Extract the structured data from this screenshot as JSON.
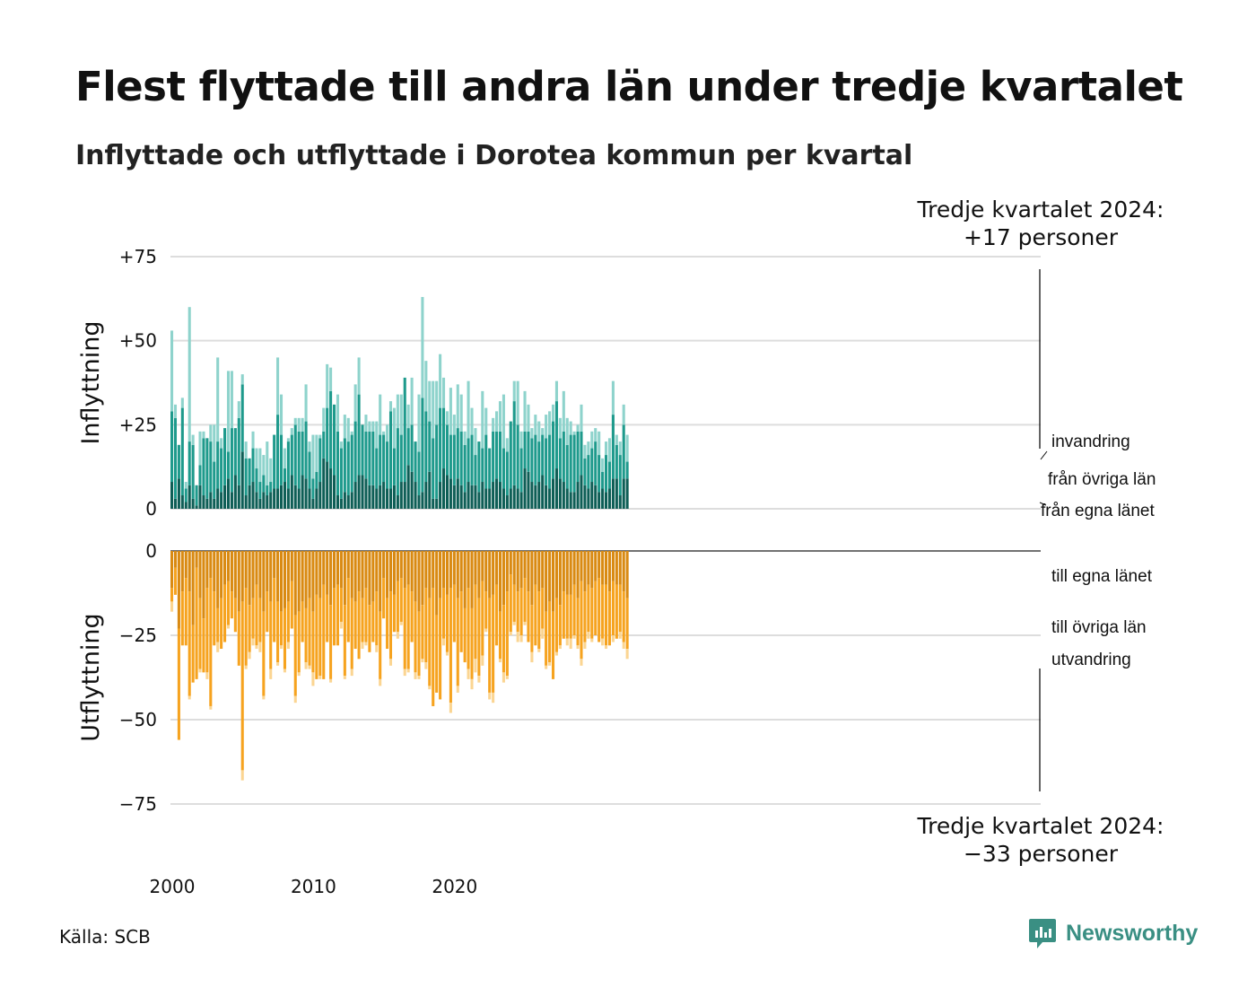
{
  "header": {
    "title": "Flest flyttade till andra län under tredje kvartalet",
    "subtitle": "Inflyttade och utflyttade i Dorotea kommun per kvartal"
  },
  "footer": {
    "source": "Källa: SCB",
    "brand": "Newsworthy"
  },
  "annotations": {
    "top_line1": "Tredje kvartalet 2024:",
    "top_line2": "+17 personer",
    "bottom_line1": "Tredje kvartalet 2024:",
    "bottom_line2": "−33 personer"
  },
  "colors": {
    "in_own": "#0e5e56",
    "in_other": "#1e9a8c",
    "in_abroad": "#8ed3cc",
    "out_own": "#d98a12",
    "out_other": "#f6a31f",
    "out_abroad": "#fbd592",
    "grid": "#dddddd",
    "brand": "#3a8f83"
  },
  "chart_data": {
    "type": "bar",
    "stacked": true,
    "x_start": "2000 Q1",
    "x_ticks": [
      "2000",
      "2010",
      "2020"
    ],
    "panels": [
      {
        "ylabel": "Inflyttning",
        "ylim": [
          0,
          75
        ],
        "yticks": [
          {
            "value": 0,
            "label": "0"
          },
          {
            "value": 25,
            "label": "+25"
          },
          {
            "value": 50,
            "label": "+50"
          },
          {
            "value": 75,
            "label": "+75"
          }
        ],
        "series": [
          {
            "name": "från egna länet",
            "values": [
              8,
              3,
              9,
              4,
              2,
              7,
              3,
              1,
              7,
              4,
              3,
              5,
              3,
              6,
              5,
              7,
              9,
              5,
              10,
              7,
              17,
              4,
              7,
              8,
              5,
              3,
              5,
              4,
              5,
              6,
              6,
              7,
              8,
              6,
              10,
              7,
              6,
              10,
              9,
              6,
              3,
              6,
              8,
              15,
              14,
              12,
              10,
              4,
              3,
              5,
              4,
              5,
              8,
              10,
              10,
              9,
              7,
              7,
              6,
              7,
              8,
              6,
              6,
              7,
              4,
              8,
              8,
              13,
              11,
              8,
              4,
              5,
              8,
              11,
              3,
              3,
              8,
              12,
              10,
              9,
              7,
              9,
              7,
              5,
              8,
              7,
              7,
              5,
              8,
              6,
              6,
              8,
              9,
              8,
              6,
              4,
              6,
              7,
              6,
              5,
              12,
              11,
              8,
              7,
              8,
              10,
              7,
              6,
              9,
              12,
              9,
              8,
              6,
              5,
              5,
              8,
              10,
              7,
              6,
              8,
              7,
              5,
              6,
              5,
              6,
              9,
              9,
              4,
              9,
              9
            ]
          },
          {
            "name": "från övriga län",
            "values": [
              21,
              24,
              10,
              26,
              4,
              13,
              16,
              6,
              6,
              17,
              18,
              15,
              11,
              14,
              13,
              17,
              8,
              19,
              14,
              20,
              20,
              11,
              8,
              10,
              7,
              5,
              5,
              3,
              3,
              16,
              22,
              15,
              4,
              14,
              12,
              18,
              17,
              13,
              17,
              11,
              6,
              5,
              13,
              8,
              16,
              23,
              21,
              19,
              15,
              16,
              16,
              17,
              18,
              24,
              15,
              14,
              16,
              16,
              12,
              15,
              14,
              14,
              23,
              11,
              20,
              14,
              31,
              11,
              14,
              12,
              13,
              28,
              21,
              15,
              18,
              22,
              22,
              18,
              15,
              13,
              15,
              15,
              16,
              14,
              13,
              15,
              9,
              15,
              10,
              16,
              12,
              15,
              14,
              15,
              12,
              13,
              20,
              25,
              19,
              13,
              11,
              12,
              13,
              15,
              12,
              12,
              14,
              16,
              17,
              20,
              12,
              15,
              13,
              17,
              17,
              15,
              13,
              8,
              10,
              10,
              13,
              11,
              5,
              11,
              8,
              19,
              10,
              12,
              16,
              5
            ]
          },
          {
            "name": "invandring",
            "values": [
              24,
              4,
              0,
              3,
              2,
              40,
              3,
              0,
              10,
              2,
              0,
              5,
              11,
              25,
              3,
              0,
              24,
              17,
              0,
              5,
              3,
              5,
              0,
              5,
              6,
              10,
              6,
              13,
              7,
              0,
              17,
              12,
              6,
              1,
              2,
              2,
              4,
              4,
              11,
              3,
              13,
              11,
              1,
              7,
              13,
              7,
              0,
              11,
              2,
              7,
              7,
              1,
              11,
              11,
              0,
              5,
              3,
              3,
              8,
              12,
              1,
              5,
              3,
              12,
              10,
              12,
              0,
              7,
              14,
              0,
              17,
              30,
              15,
              12,
              17,
              13,
              16,
              9,
              4,
              14,
              6,
              13,
              11,
              4,
              17,
              8,
              8,
              0,
              17,
              8,
              0,
              4,
              6,
              9,
              16,
              4,
              0,
              6,
              13,
              5,
              12,
              8,
              3,
              6,
              6,
              2,
              7,
              7,
              5,
              6,
              6,
              12,
              8,
              4,
              1,
              2,
              8,
              4,
              4,
              5,
              4,
              7,
              4,
              4,
              7,
              10,
              3,
              4,
              6,
              8
            ]
          }
        ]
      },
      {
        "ylabel": "Utflyttning",
        "ylim": [
          -75,
          0
        ],
        "yticks": [
          {
            "value": 0,
            "label": "0"
          },
          {
            "value": -25,
            "label": "−25"
          },
          {
            "value": -50,
            "label": "−50"
          },
          {
            "value": -75,
            "label": "−75"
          }
        ],
        "series": [
          {
            "name": "till egna länet",
            "values": [
              -11,
              -5,
              -23,
              -12,
              -8,
              -12,
              -22,
              -5,
              -14,
              -20,
              -11,
              -8,
              -12,
              -17,
              -14,
              -10,
              -9,
              -12,
              -14,
              -18,
              -15,
              -11,
              -16,
              -14,
              -10,
              -14,
              -18,
              -12,
              -15,
              -8,
              -15,
              -18,
              -17,
              -15,
              -9,
              -19,
              -18,
              -15,
              -17,
              -14,
              -18,
              -13,
              -14,
              -10,
              -13,
              -16,
              -11,
              -10,
              -11,
              -16,
              -8,
              -14,
              -15,
              -12,
              -14,
              -11,
              -16,
              -15,
              -12,
              -18,
              -8,
              -14,
              -12,
              -13,
              -9,
              -8,
              -11,
              -10,
              -12,
              -15,
              -18,
              -16,
              -11,
              -14,
              -11,
              -19,
              -14,
              -11,
              -13,
              -11,
              -10,
              -14,
              -12,
              -17,
              -11,
              -17,
              -10,
              -14,
              -9,
              -12,
              -14,
              -13,
              -10,
              -18,
              -16,
              -12,
              -7,
              -10,
              -12,
              -11,
              -8,
              -12,
              -16,
              -10,
              -12,
              -11,
              -18,
              -15,
              -18,
              -14,
              -16,
              -12,
              -13,
              -13,
              -10,
              -14,
              -9,
              -12,
              -10,
              -11,
              -9,
              -8,
              -10,
              -10,
              -12,
              -9,
              -10,
              -10,
              -12,
              -14
            ]
          },
          {
            "name": "till övriga län",
            "values": [
              -4,
              -8,
              -33,
              -16,
              -20,
              -31,
              -17,
              -33,
              -21,
              -16,
              -25,
              -38,
              -16,
              -10,
              -15,
              -17,
              -13,
              -8,
              -10,
              -16,
              -50,
              -23,
              -14,
              -12,
              -18,
              -13,
              -25,
              -12,
              -20,
              -19,
              -18,
              -10,
              -18,
              -12,
              -14,
              -24,
              -18,
              -12,
              -16,
              -20,
              -18,
              -25,
              -23,
              -28,
              -14,
              -22,
              -17,
              -18,
              -10,
              -21,
              -19,
              -21,
              -14,
              -20,
              -13,
              -16,
              -14,
              -12,
              -16,
              -20,
              -12,
              -15,
              -20,
              -11,
              -15,
              -13,
              -24,
              -25,
              -15,
              -21,
              -19,
              -16,
              -22,
              -26,
              -35,
              -23,
              -30,
              -15,
              -17,
              -34,
              -17,
              -26,
              -18,
              -16,
              -24,
              -21,
              -22,
              -23,
              -22,
              -11,
              -28,
              -29,
              -18,
              -14,
              -20,
              -25,
              -17,
              -11,
              -12,
              -14,
              -13,
              -15,
              -14,
              -18,
              -17,
              -12,
              -16,
              -18,
              -20,
              -16,
              -12,
              -14,
              -13,
              -13,
              -15,
              -14,
              -23,
              -15,
              -14,
              -15,
              -16,
              -19,
              -16,
              -18,
              -16,
              -16,
              -16,
              -14,
              -15,
              -15
            ]
          },
          {
            "name": "utvandring",
            "values": [
              -3,
              0,
              0,
              0,
              0,
              -1,
              0,
              0,
              -1,
              0,
              -2,
              -1,
              0,
              -3,
              0,
              0,
              -1,
              0,
              0,
              0,
              -3,
              -1,
              -2,
              -2,
              -1,
              -3,
              -1,
              0,
              -3,
              0,
              -1,
              -1,
              -1,
              -2,
              0,
              -2,
              -1,
              0,
              -2,
              -1,
              -4,
              0,
              -1,
              0,
              0,
              -1,
              0,
              0,
              -2,
              -1,
              0,
              -2,
              0,
              0,
              -2,
              -1,
              0,
              0,
              -2,
              -2,
              0,
              0,
              -2,
              0,
              -2,
              -1,
              -2,
              -1,
              0,
              -2,
              -1,
              -1,
              -2,
              -1,
              0,
              0,
              0,
              -2,
              -1,
              -3,
              0,
              -2,
              0,
              0,
              -3,
              -3,
              -4,
              -2,
              -3,
              -1,
              -2,
              -3,
              0,
              -1,
              -3,
              -1,
              -1,
              -1,
              -3,
              -2,
              -1,
              0,
              -3,
              0,
              -1,
              -3,
              -1,
              -1,
              0,
              -1,
              -1,
              0,
              -2,
              -3,
              -1,
              -1,
              -2,
              -2,
              -2,
              -1,
              0,
              0,
              -2,
              -1,
              0,
              -2,
              0,
              -2,
              -2,
              -3
            ]
          }
        ]
      }
    ]
  }
}
